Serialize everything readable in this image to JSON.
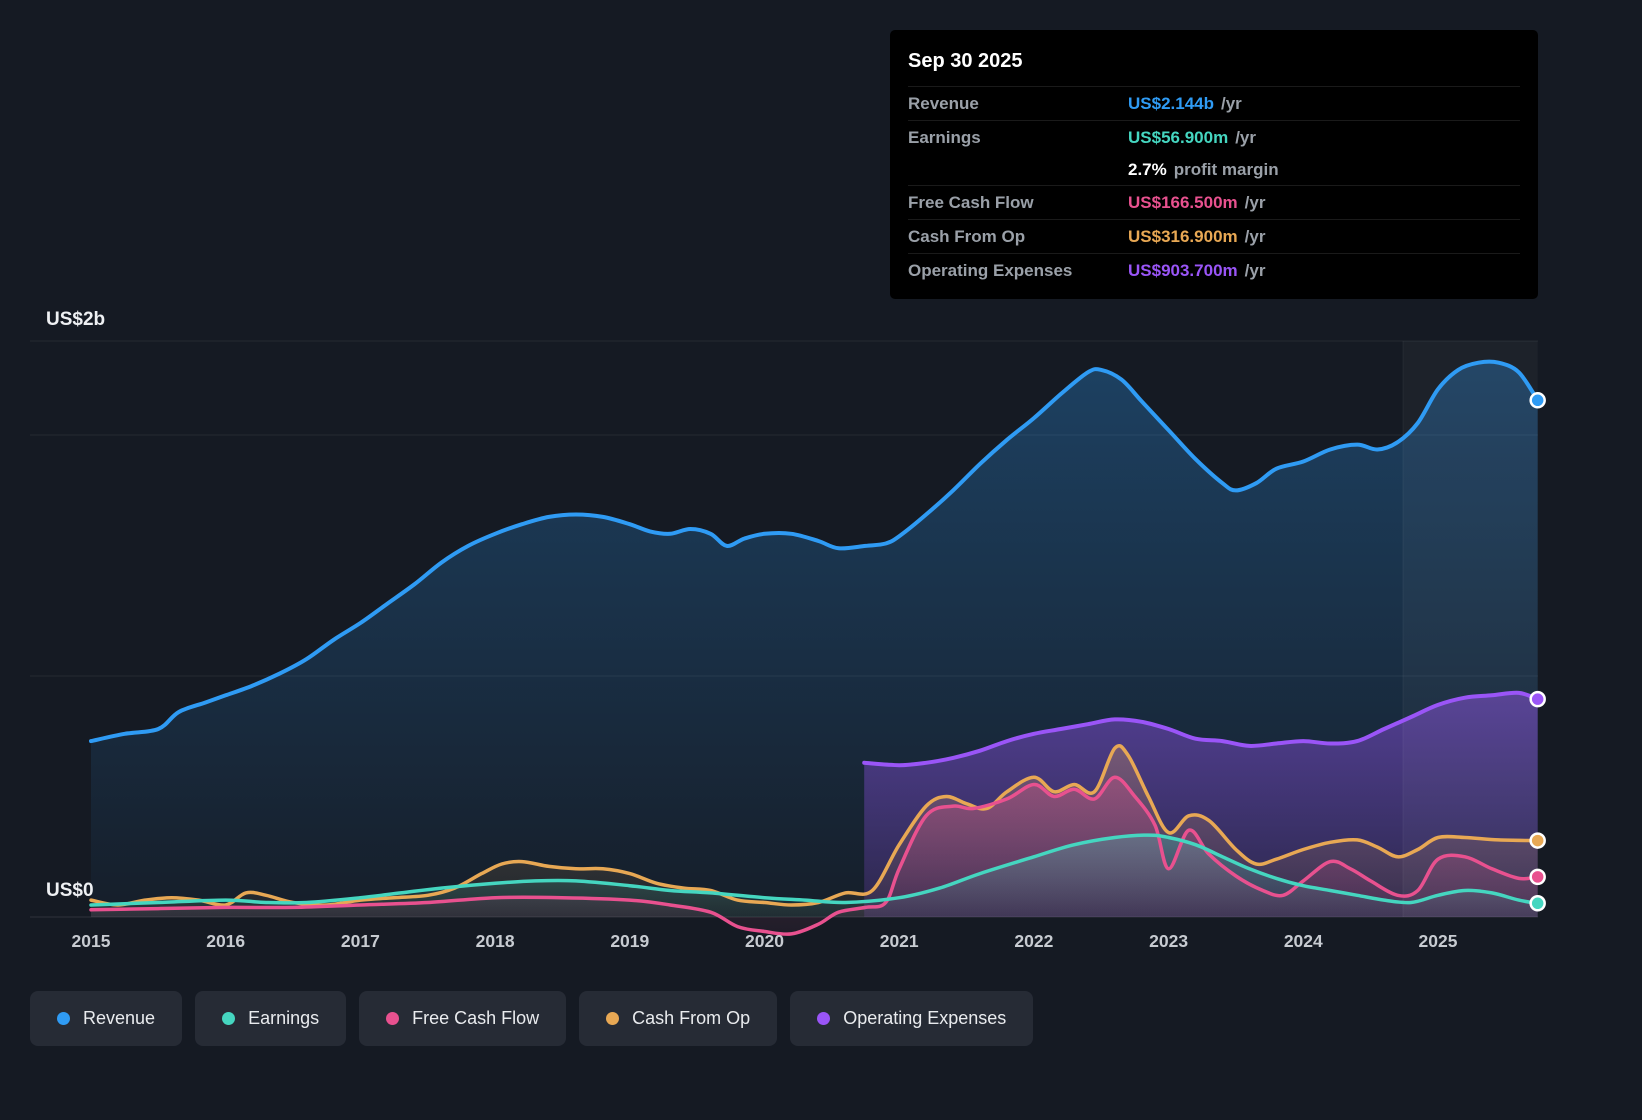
{
  "colors": {
    "revenue": "#2f9bf4",
    "earnings": "#45d6c0",
    "free_cash_flow": "#e8518f",
    "cash_from_op": "#e8a854",
    "operating_expenses": "#9a55f7",
    "background": "#151a23",
    "tooltip_bg": "#000000",
    "text_muted": "#9aa0a8",
    "text_bright": "#eef0f3"
  },
  "tooltip": {
    "date": "Sep 30 2025",
    "rows": [
      {
        "label": "Revenue",
        "value": "US$2.144b",
        "suffix": "/yr",
        "color": "revenue"
      },
      {
        "label": "Earnings",
        "value": "US$56.900m",
        "suffix": "/yr",
        "color": "earnings"
      },
      {
        "label": "Free Cash Flow",
        "value": "US$166.500m",
        "suffix": "/yr",
        "color": "free_cash_flow"
      },
      {
        "label": "Cash From Op",
        "value": "US$316.900m",
        "suffix": "/yr",
        "color": "cash_from_op"
      },
      {
        "label": "Operating Expenses",
        "value": "US$903.700m",
        "suffix": "/yr",
        "color": "operating_expenses"
      }
    ],
    "margin": {
      "value": "2.7%",
      "suffix": "profit margin"
    }
  },
  "legend": {
    "items": [
      {
        "label": "Revenue",
        "color": "#2f9bf4"
      },
      {
        "label": "Earnings",
        "color": "#45d6c0"
      },
      {
        "label": "Free Cash Flow",
        "color": "#e8518f"
      },
      {
        "label": "Cash From Op",
        "color": "#e8a854"
      },
      {
        "label": "Operating Expenses",
        "color": "#9a55f7"
      }
    ]
  },
  "chart_data": {
    "type": "area",
    "title": "",
    "xlabel": "",
    "ylabel": "US$ (billions)",
    "x_ticks": [
      "2015",
      "2016",
      "2017",
      "2018",
      "2019",
      "2020",
      "2021",
      "2022",
      "2023",
      "2024",
      "2025"
    ],
    "y_axis_labels": [
      "US$2b",
      "US$0"
    ],
    "x_range": [
      2015,
      2025.74
    ],
    "y_range": [
      -0.1,
      2.39
    ],
    "y_gridline_values": [
      0,
      1,
      2
    ],
    "grid": true,
    "legend_position": "bottom",
    "highlight_band": {
      "from": 2024.74,
      "to": 2025.74
    },
    "series": [
      {
        "name": "Revenue",
        "color": "#2f9bf4",
        "end_value": "US$2.144b",
        "points": [
          [
            2015,
            0.73
          ],
          [
            2015.25,
            0.76
          ],
          [
            2015.5,
            0.78
          ],
          [
            2015.65,
            0.85
          ],
          [
            2015.85,
            0.89
          ],
          [
            2016,
            0.92
          ],
          [
            2016.2,
            0.96
          ],
          [
            2016.4,
            1.01
          ],
          [
            2016.6,
            1.07
          ],
          [
            2016.8,
            1.15
          ],
          [
            2017,
            1.22
          ],
          [
            2017.2,
            1.3
          ],
          [
            2017.4,
            1.38
          ],
          [
            2017.6,
            1.47
          ],
          [
            2017.8,
            1.54
          ],
          [
            2018,
            1.59
          ],
          [
            2018.2,
            1.63
          ],
          [
            2018.4,
            1.66
          ],
          [
            2018.6,
            1.67
          ],
          [
            2018.8,
            1.66
          ],
          [
            2019,
            1.63
          ],
          [
            2019.15,
            1.6
          ],
          [
            2019.3,
            1.59
          ],
          [
            2019.45,
            1.61
          ],
          [
            2019.6,
            1.59
          ],
          [
            2019.72,
            1.54
          ],
          [
            2019.85,
            1.57
          ],
          [
            2020,
            1.59
          ],
          [
            2020.2,
            1.59
          ],
          [
            2020.4,
            1.56
          ],
          [
            2020.55,
            1.53
          ],
          [
            2020.75,
            1.54
          ],
          [
            2020.9,
            1.55
          ],
          [
            2021,
            1.58
          ],
          [
            2021.2,
            1.67
          ],
          [
            2021.4,
            1.77
          ],
          [
            2021.6,
            1.88
          ],
          [
            2021.8,
            1.98
          ],
          [
            2022,
            2.07
          ],
          [
            2022.2,
            2.17
          ],
          [
            2022.4,
            2.26
          ],
          [
            2022.5,
            2.27
          ],
          [
            2022.65,
            2.23
          ],
          [
            2022.8,
            2.14
          ],
          [
            2023,
            2.02
          ],
          [
            2023.2,
            1.9
          ],
          [
            2023.4,
            1.8
          ],
          [
            2023.5,
            1.77
          ],
          [
            2023.65,
            1.8
          ],
          [
            2023.8,
            1.86
          ],
          [
            2024,
            1.89
          ],
          [
            2024.2,
            1.94
          ],
          [
            2024.4,
            1.96
          ],
          [
            2024.55,
            1.94
          ],
          [
            2024.7,
            1.97
          ],
          [
            2024.85,
            2.05
          ],
          [
            2025,
            2.19
          ],
          [
            2025.15,
            2.27
          ],
          [
            2025.3,
            2.3
          ],
          [
            2025.45,
            2.3
          ],
          [
            2025.6,
            2.26
          ],
          [
            2025.74,
            2.144
          ]
        ]
      },
      {
        "name": "Operating Expenses",
        "color": "#9a55f7",
        "end_value": "US$903.700m",
        "points": [
          [
            2020.74,
            0.64
          ],
          [
            2021,
            0.63
          ],
          [
            2021.2,
            0.64
          ],
          [
            2021.4,
            0.66
          ],
          [
            2021.6,
            0.69
          ],
          [
            2021.8,
            0.73
          ],
          [
            2022,
            0.76
          ],
          [
            2022.2,
            0.78
          ],
          [
            2022.4,
            0.8
          ],
          [
            2022.6,
            0.82
          ],
          [
            2022.8,
            0.81
          ],
          [
            2023,
            0.78
          ],
          [
            2023.2,
            0.74
          ],
          [
            2023.4,
            0.73
          ],
          [
            2023.6,
            0.71
          ],
          [
            2023.8,
            0.72
          ],
          [
            2024,
            0.73
          ],
          [
            2024.2,
            0.72
          ],
          [
            2024.4,
            0.73
          ],
          [
            2024.6,
            0.78
          ],
          [
            2024.8,
            0.83
          ],
          [
            2025,
            0.88
          ],
          [
            2025.2,
            0.91
          ],
          [
            2025.4,
            0.92
          ],
          [
            2025.6,
            0.93
          ],
          [
            2025.74,
            0.904
          ]
        ]
      },
      {
        "name": "Cash From Op",
        "color": "#e8a854",
        "end_value": "US$316.900m",
        "points": [
          [
            2015,
            0.07
          ],
          [
            2015.2,
            0.05
          ],
          [
            2015.4,
            0.07
          ],
          [
            2015.6,
            0.08
          ],
          [
            2015.8,
            0.07
          ],
          [
            2016,
            0.05
          ],
          [
            2016.15,
            0.1
          ],
          [
            2016.3,
            0.09
          ],
          [
            2016.5,
            0.06
          ],
          [
            2016.75,
            0.05
          ],
          [
            2017,
            0.07
          ],
          [
            2017.25,
            0.08
          ],
          [
            2017.5,
            0.09
          ],
          [
            2017.7,
            0.12
          ],
          [
            2017.9,
            0.18
          ],
          [
            2018.05,
            0.22
          ],
          [
            2018.2,
            0.23
          ],
          [
            2018.4,
            0.21
          ],
          [
            2018.6,
            0.2
          ],
          [
            2018.8,
            0.2
          ],
          [
            2019,
            0.18
          ],
          [
            2019.2,
            0.14
          ],
          [
            2019.4,
            0.12
          ],
          [
            2019.6,
            0.11
          ],
          [
            2019.8,
            0.07
          ],
          [
            2020,
            0.06
          ],
          [
            2020.2,
            0.05
          ],
          [
            2020.4,
            0.06
          ],
          [
            2020.6,
            0.1
          ],
          [
            2020.8,
            0.11
          ],
          [
            2021,
            0.3
          ],
          [
            2021.2,
            0.46
          ],
          [
            2021.35,
            0.5
          ],
          [
            2021.5,
            0.47
          ],
          [
            2021.65,
            0.45
          ],
          [
            2021.8,
            0.52
          ],
          [
            2022,
            0.58
          ],
          [
            2022.15,
            0.52
          ],
          [
            2022.3,
            0.55
          ],
          [
            2022.45,
            0.52
          ],
          [
            2022.6,
            0.7
          ],
          [
            2022.7,
            0.67
          ],
          [
            2022.85,
            0.5
          ],
          [
            2023,
            0.35
          ],
          [
            2023.15,
            0.42
          ],
          [
            2023.3,
            0.4
          ],
          [
            2023.5,
            0.28
          ],
          [
            2023.65,
            0.22
          ],
          [
            2023.8,
            0.24
          ],
          [
            2024,
            0.28
          ],
          [
            2024.2,
            0.31
          ],
          [
            2024.4,
            0.32
          ],
          [
            2024.55,
            0.29
          ],
          [
            2024.7,
            0.25
          ],
          [
            2024.85,
            0.28
          ],
          [
            2025,
            0.33
          ],
          [
            2025.2,
            0.33
          ],
          [
            2025.45,
            0.32
          ],
          [
            2025.74,
            0.317
          ]
        ]
      },
      {
        "name": "Free Cash Flow",
        "color": "#e8518f",
        "end_value": "US$166.500m",
        "points": [
          [
            2015,
            0.03
          ],
          [
            2015.5,
            0.035
          ],
          [
            2016,
            0.04
          ],
          [
            2016.5,
            0.04
          ],
          [
            2017,
            0.05
          ],
          [
            2017.5,
            0.06
          ],
          [
            2018,
            0.08
          ],
          [
            2018.5,
            0.08
          ],
          [
            2019,
            0.07
          ],
          [
            2019.3,
            0.05
          ],
          [
            2019.6,
            0.02
          ],
          [
            2019.8,
            -0.04
          ],
          [
            2020,
            -0.06
          ],
          [
            2020.2,
            -0.07
          ],
          [
            2020.4,
            -0.03
          ],
          [
            2020.55,
            0.02
          ],
          [
            2020.75,
            0.04
          ],
          [
            2020.9,
            0.06
          ],
          [
            2021,
            0.2
          ],
          [
            2021.2,
            0.42
          ],
          [
            2021.4,
            0.46
          ],
          [
            2021.55,
            0.45
          ],
          [
            2021.8,
            0.49
          ],
          [
            2022,
            0.55
          ],
          [
            2022.15,
            0.5
          ],
          [
            2022.3,
            0.53
          ],
          [
            2022.45,
            0.49
          ],
          [
            2022.6,
            0.58
          ],
          [
            2022.75,
            0.5
          ],
          [
            2022.9,
            0.38
          ],
          [
            2023,
            0.2
          ],
          [
            2023.15,
            0.36
          ],
          [
            2023.3,
            0.26
          ],
          [
            2023.5,
            0.17
          ],
          [
            2023.7,
            0.11
          ],
          [
            2023.85,
            0.09
          ],
          [
            2024,
            0.15
          ],
          [
            2024.2,
            0.23
          ],
          [
            2024.35,
            0.2
          ],
          [
            2024.5,
            0.15
          ],
          [
            2024.7,
            0.09
          ],
          [
            2024.85,
            0.11
          ],
          [
            2025,
            0.24
          ],
          [
            2025.2,
            0.25
          ],
          [
            2025.4,
            0.2
          ],
          [
            2025.6,
            0.16
          ],
          [
            2025.74,
            0.1665
          ]
        ]
      },
      {
        "name": "Earnings",
        "color": "#45d6c0",
        "end_value": "US$56.900m",
        "points": [
          [
            2015,
            0.05
          ],
          [
            2015.5,
            0.06
          ],
          [
            2016,
            0.07
          ],
          [
            2016.3,
            0.06
          ],
          [
            2016.6,
            0.06
          ],
          [
            2017,
            0.08
          ],
          [
            2017.3,
            0.1
          ],
          [
            2017.6,
            0.12
          ],
          [
            2018,
            0.14
          ],
          [
            2018.3,
            0.15
          ],
          [
            2018.6,
            0.15
          ],
          [
            2019,
            0.13
          ],
          [
            2019.3,
            0.11
          ],
          [
            2019.6,
            0.1
          ],
          [
            2020,
            0.08
          ],
          [
            2020.3,
            0.07
          ],
          [
            2020.6,
            0.06
          ],
          [
            2021,
            0.08
          ],
          [
            2021.3,
            0.12
          ],
          [
            2021.6,
            0.18
          ],
          [
            2022,
            0.25
          ],
          [
            2022.3,
            0.3
          ],
          [
            2022.6,
            0.33
          ],
          [
            2022.85,
            0.34
          ],
          [
            2023,
            0.33
          ],
          [
            2023.2,
            0.3
          ],
          [
            2023.4,
            0.25
          ],
          [
            2023.6,
            0.2
          ],
          [
            2023.8,
            0.16
          ],
          [
            2024,
            0.13
          ],
          [
            2024.2,
            0.11
          ],
          [
            2024.4,
            0.09
          ],
          [
            2024.6,
            0.07
          ],
          [
            2024.8,
            0.06
          ],
          [
            2025,
            0.09
          ],
          [
            2025.2,
            0.11
          ],
          [
            2025.4,
            0.1
          ],
          [
            2025.6,
            0.07
          ],
          [
            2025.74,
            0.057
          ]
        ]
      }
    ]
  }
}
